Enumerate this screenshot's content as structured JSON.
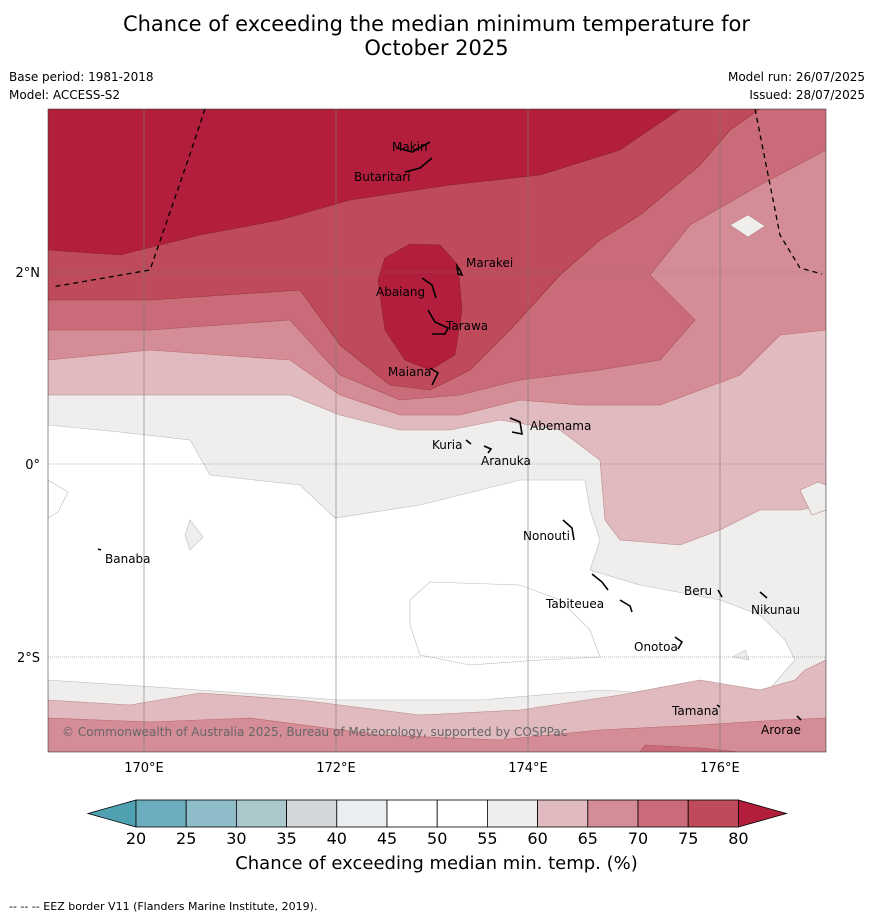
{
  "title_line1": "Chance of exceeding the median minimum temperature for",
  "title_line2": "October 2025",
  "base_period": "Base period: 1981-2018",
  "model": "Model: ACCESS-S2",
  "model_run": "Model run: 26/07/2025",
  "issued": "Issued: 28/07/2025",
  "map": {
    "lon_labels": [
      "170°E",
      "172°E",
      "174°E",
      "176°E"
    ],
    "lat_labels": [
      "2°N",
      "0°",
      "2°S"
    ],
    "places": [
      "Makin",
      "Butaritari",
      "Marakei",
      "Abaiang",
      "Tarawa",
      "Maiana",
      "Abemama",
      "Kuria",
      "Aranuka",
      "Banaba",
      "Nonouti",
      "Tabiteuea",
      "Beru",
      "Nikunau",
      "Onotoa",
      "Tamana",
      "Arorae"
    ],
    "copyright": "© Commonwealth of Australia 2025, Bureau of Meteorology, supported by COSPPac"
  },
  "legend": {
    "ticks": [
      "20",
      "25",
      "30",
      "35",
      "40",
      "45",
      "50",
      "55",
      "60",
      "65",
      "70",
      "75",
      "80"
    ],
    "colors": [
      "#4fa0b1",
      "#6badbd",
      "#8ebcc8",
      "#abc8cd",
      "#d4d7d9",
      "#eaeef0",
      "#ffffff",
      "#ffffff",
      "#efeeed",
      "#e0babf",
      "#d48d96",
      "#c96b78",
      "#bf4a5c",
      "#b31e3c"
    ],
    "label": "Chance of exceeding median min. temp. (%)"
  },
  "footer": "--  --  -- EEZ border V11 (Flanders Marine Institute, 2019)."
}
